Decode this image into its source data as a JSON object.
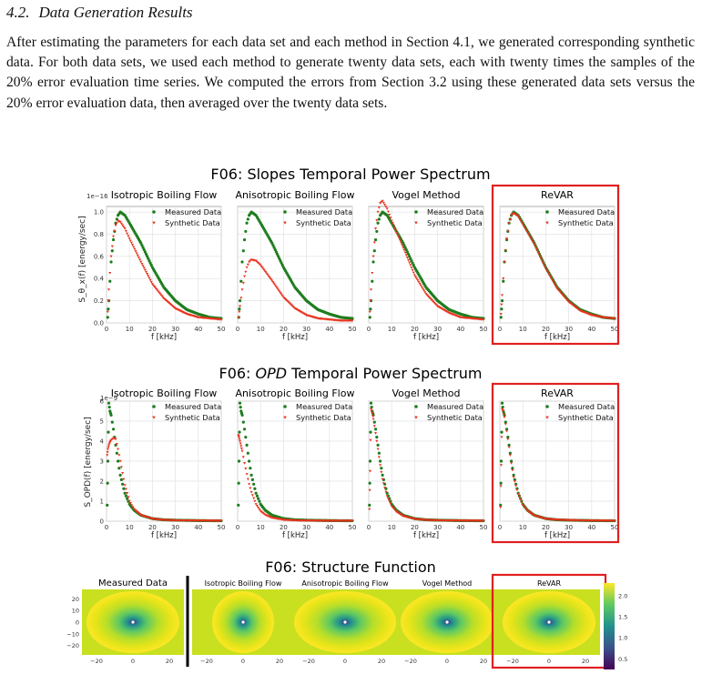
{
  "section": {
    "number": "4.2.",
    "title": "Data Generation Results"
  },
  "paragraph": "After estimating the parameters for each data set and each method in Section 4.1, we generated corresponding synthetic data. For both data sets, we used each method to generate twenty data sets, each with twenty times the samples of the 20% error evaluation time series. We computed the errors from Section 3.2 using these generated data sets versus the 20% error evaluation data, then averaged over the twenty data sets.",
  "colors": {
    "measured": "#1e7d1e",
    "synthetic": "#e8321e",
    "highlight": "#e02020"
  },
  "figures": {
    "slopes_title": "F06: Slopes Temporal Power Spectrum",
    "opd_title_pre": "F06: ",
    "opd_title_em": "OPD",
    "opd_title_post": " Temporal Power Spectrum",
    "sf_title": "F06: Structure Function",
    "legend_measured": "Measured Data",
    "legend_synthetic": "Synthetic Data",
    "xlabel": "f [kHz]",
    "slopes_ylabel": "S_θ_x(f) [energy/sec]",
    "opd_ylabel": "S_OPD(f) [energy/sec]",
    "slopes_exponent": "1e−16",
    "opd_exponent": "1e−9",
    "panel_titles": [
      "Isotropic Boiling Flow",
      "Anisotropic Boiling Flow",
      "Vogel Method",
      "ReVAR"
    ],
    "sf_titles": [
      "Measured Data",
      "Isotropic Boiling Flow",
      "Anisotropic Boiling Flow",
      "Vogel Method",
      "ReVAR"
    ]
  },
  "chart_data": [
    {
      "type": "scatter",
      "title": "F06: Slopes Temporal Power Spectrum",
      "xlabel": "f [kHz]",
      "ylabel": "S_θx(f) [energy/sec]",
      "y_scale_note": "1e−16",
      "xlim": [
        0,
        50
      ],
      "ylim": [
        0,
        1.05
      ],
      "xticks": [
        0,
        10,
        20,
        30,
        40,
        50
      ],
      "yticks": [
        0.0,
        0.2,
        0.4,
        0.6,
        0.8,
        1.0
      ],
      "grid": true,
      "legend": "top-right",
      "panels": [
        {
          "title": "Isotropic Boiling Flow",
          "series": [
            {
              "name": "Measured Data",
              "x": [
                0.5,
                1,
                2,
                3,
                4,
                5,
                6,
                8,
                10,
                15,
                20,
                25,
                30,
                35,
                40,
                45,
                50
              ],
              "y": [
                0.05,
                0.2,
                0.55,
                0.75,
                0.9,
                0.97,
                1.0,
                0.97,
                0.9,
                0.72,
                0.5,
                0.32,
                0.2,
                0.12,
                0.08,
                0.05,
                0.04
              ]
            },
            {
              "name": "Synthetic Data",
              "x": [
                0.5,
                1,
                2,
                3,
                4,
                5,
                6,
                8,
                10,
                15,
                20,
                25,
                30,
                35,
                40,
                45,
                50
              ],
              "y": [
                0.1,
                0.3,
                0.6,
                0.78,
                0.88,
                0.92,
                0.91,
                0.85,
                0.76,
                0.55,
                0.35,
                0.22,
                0.13,
                0.08,
                0.05,
                0.04,
                0.03
              ]
            }
          ]
        },
        {
          "title": "Anisotropic Boiling Flow",
          "series": [
            {
              "name": "Measured Data",
              "x": [
                0.5,
                1,
                2,
                3,
                4,
                5,
                6,
                8,
                10,
                15,
                20,
                25,
                30,
                35,
                40,
                45,
                50
              ],
              "y": [
                0.05,
                0.2,
                0.55,
                0.75,
                0.9,
                0.97,
                1.0,
                0.97,
                0.9,
                0.72,
                0.5,
                0.32,
                0.2,
                0.12,
                0.08,
                0.05,
                0.04
              ]
            },
            {
              "name": "Synthetic Data",
              "x": [
                0.5,
                1,
                2,
                3,
                4,
                5,
                6,
                8,
                10,
                15,
                20,
                25,
                30,
                35,
                40,
                45,
                50
              ],
              "y": [
                0.05,
                0.15,
                0.3,
                0.42,
                0.5,
                0.55,
                0.57,
                0.56,
                0.52,
                0.38,
                0.23,
                0.13,
                0.07,
                0.04,
                0.03,
                0.02,
                0.02
              ]
            }
          ]
        },
        {
          "title": "Vogel Method",
          "series": [
            {
              "name": "Measured Data",
              "x": [
                0.5,
                1,
                2,
                3,
                4,
                5,
                6,
                8,
                10,
                15,
                20,
                25,
                30,
                35,
                40,
                45,
                50
              ],
              "y": [
                0.05,
                0.2,
                0.55,
                0.75,
                0.9,
                0.97,
                1.0,
                0.97,
                0.9,
                0.72,
                0.5,
                0.32,
                0.2,
                0.12,
                0.08,
                0.05,
                0.04
              ]
            },
            {
              "name": "Synthetic Data",
              "x": [
                0.5,
                1,
                2,
                3,
                4,
                5,
                6,
                8,
                10,
                15,
                20,
                25,
                30,
                35,
                40,
                45,
                50
              ],
              "y": [
                0.1,
                0.3,
                0.6,
                0.85,
                1.0,
                1.08,
                1.1,
                1.03,
                0.92,
                0.68,
                0.43,
                0.26,
                0.15,
                0.09,
                0.05,
                0.04,
                0.03
              ]
            }
          ]
        },
        {
          "title": "ReVAR",
          "series": [
            {
              "name": "Measured Data",
              "x": [
                0.5,
                1,
                2,
                3,
                4,
                5,
                6,
                8,
                10,
                15,
                20,
                25,
                30,
                35,
                40,
                45,
                50
              ],
              "y": [
                0.05,
                0.2,
                0.55,
                0.75,
                0.9,
                0.97,
                1.0,
                0.97,
                0.9,
                0.72,
                0.5,
                0.32,
                0.2,
                0.12,
                0.08,
                0.05,
                0.04
              ]
            },
            {
              "name": "Synthetic Data",
              "x": [
                0.5,
                1,
                2,
                3,
                4,
                5,
                6,
                8,
                10,
                15,
                20,
                25,
                30,
                35,
                40,
                45,
                50
              ],
              "y": [
                0.08,
                0.25,
                0.55,
                0.76,
                0.9,
                0.97,
                0.99,
                0.96,
                0.89,
                0.71,
                0.49,
                0.31,
                0.19,
                0.11,
                0.07,
                0.05,
                0.04
              ]
            }
          ]
        }
      ]
    },
    {
      "type": "scatter",
      "title": "F06: OPD Temporal Power Spectrum",
      "xlabel": "f [kHz]",
      "ylabel": "S_OPD(f) [energy/sec]",
      "y_scale_note": "1e−9",
      "xlim": [
        0,
        50
      ],
      "ylim": [
        0,
        6
      ],
      "xticks": [
        0,
        10,
        20,
        30,
        40,
        50
      ],
      "yticks": [
        0,
        1,
        2,
        3,
        4,
        5,
        6
      ],
      "grid": true,
      "legend": "top-right",
      "panels": [
        {
          "title": "Isotropic Boiling Flow",
          "series": [
            {
              "name": "Measured Data",
              "x": [
                0.3,
                0.6,
                1,
                1.5,
                2,
                3,
                4,
                5,
                6,
                8,
                10,
                12,
                15,
                20,
                25,
                30,
                40,
                50
              ],
              "y": [
                0.8,
                3.0,
                5.9,
                5.5,
                5.3,
                4.6,
                3.8,
                3.0,
                2.3,
                1.4,
                0.85,
                0.55,
                0.3,
                0.13,
                0.07,
                0.05,
                0.03,
                0.02
              ]
            },
            {
              "name": "Synthetic Data",
              "x": [
                0.3,
                0.6,
                1,
                1.5,
                2,
                3,
                4,
                5,
                6,
                8,
                10,
                12,
                15,
                20,
                25,
                30,
                40,
                50
              ],
              "y": [
                3.3,
                3.6,
                3.8,
                3.95,
                4.05,
                4.15,
                4.1,
                3.6,
                3.0,
                1.8,
                1.0,
                0.6,
                0.3,
                0.12,
                0.06,
                0.04,
                0.03,
                0.02
              ]
            }
          ]
        },
        {
          "title": "Anisotropic Boiling Flow",
          "series": [
            {
              "name": "Measured Data",
              "x": [
                0.3,
                0.6,
                1,
                1.5,
                2,
                3,
                4,
                5,
                6,
                8,
                10,
                12,
                15,
                20,
                25,
                30,
                40,
                50
              ],
              "y": [
                0.8,
                3.0,
                5.9,
                5.5,
                5.3,
                4.6,
                3.8,
                3.0,
                2.3,
                1.4,
                0.85,
                0.55,
                0.3,
                0.13,
                0.07,
                0.05,
                0.03,
                0.02
              ]
            },
            {
              "name": "Synthetic Data",
              "x": [
                0.3,
                0.6,
                1,
                1.5,
                2,
                3,
                4,
                5,
                6,
                8,
                10,
                12,
                15,
                20,
                25,
                30,
                40,
                50
              ],
              "y": [
                4.3,
                4.2,
                4.0,
                3.75,
                3.5,
                2.9,
                2.35,
                1.85,
                1.45,
                0.85,
                0.5,
                0.32,
                0.17,
                0.07,
                0.04,
                0.03,
                0.02,
                0.02
              ]
            }
          ]
        },
        {
          "title": "Vogel Method",
          "series": [
            {
              "name": "Measured Data",
              "x": [
                0.3,
                0.6,
                1,
                1.5,
                2,
                3,
                4,
                5,
                6,
                8,
                10,
                12,
                15,
                20,
                25,
                30,
                40,
                50
              ],
              "y": [
                0.8,
                3.0,
                5.9,
                5.5,
                5.3,
                4.6,
                3.8,
                3.0,
                2.3,
                1.4,
                0.85,
                0.55,
                0.3,
                0.13,
                0.07,
                0.05,
                0.03,
                0.02
              ]
            },
            {
              "name": "Synthetic Data",
              "x": [
                0.3,
                0.6,
                1,
                1.5,
                2,
                3,
                4,
                5,
                6,
                8,
                10,
                12,
                15,
                20,
                25,
                30,
                40,
                50
              ],
              "y": [
                0.6,
                2.5,
                5.6,
                5.4,
                5.1,
                4.4,
                3.6,
                2.8,
                2.1,
                1.25,
                0.75,
                0.48,
                0.26,
                0.11,
                0.06,
                0.04,
                0.03,
                0.02
              ]
            }
          ]
        },
        {
          "title": "ReVAR",
          "series": [
            {
              "name": "Measured Data",
              "x": [
                0.3,
                0.6,
                1,
                1.5,
                2,
                3,
                4,
                5,
                6,
                8,
                10,
                12,
                15,
                20,
                25,
                30,
                40,
                50
              ],
              "y": [
                0.8,
                3.0,
                5.9,
                5.5,
                5.3,
                4.6,
                3.8,
                3.0,
                2.3,
                1.4,
                0.85,
                0.55,
                0.3,
                0.13,
                0.07,
                0.05,
                0.03,
                0.02
              ]
            },
            {
              "name": "Synthetic Data",
              "x": [
                0.3,
                0.6,
                1,
                1.5,
                2,
                3,
                4,
                5,
                6,
                8,
                10,
                12,
                15,
                20,
                25,
                30,
                40,
                50
              ],
              "y": [
                0.7,
                2.8,
                5.6,
                5.5,
                5.2,
                4.5,
                3.7,
                2.9,
                2.2,
                1.35,
                0.82,
                0.52,
                0.28,
                0.12,
                0.07,
                0.05,
                0.03,
                0.02
              ]
            }
          ]
        }
      ]
    },
    {
      "type": "heatmap",
      "title": "F06: Structure Function",
      "xticks": [
        -20,
        0,
        20
      ],
      "yticks": [
        20,
        10,
        0,
        -10,
        -20
      ],
      "colorbar_ticks": [
        0.5,
        1.0,
        1.5,
        2.0
      ],
      "colormap": "viridis",
      "panels": [
        {
          "title": "Measured Data",
          "x_stretch": 1.5
        },
        {
          "title": "Isotropic Boiling Flow",
          "x_stretch": 1.0
        },
        {
          "title": "Anisotropic Boiling Flow",
          "x_stretch": 1.7
        },
        {
          "title": "Vogel Method",
          "x_stretch": 1.5
        },
        {
          "title": "ReVAR",
          "x_stretch": 1.5
        }
      ]
    }
  ]
}
